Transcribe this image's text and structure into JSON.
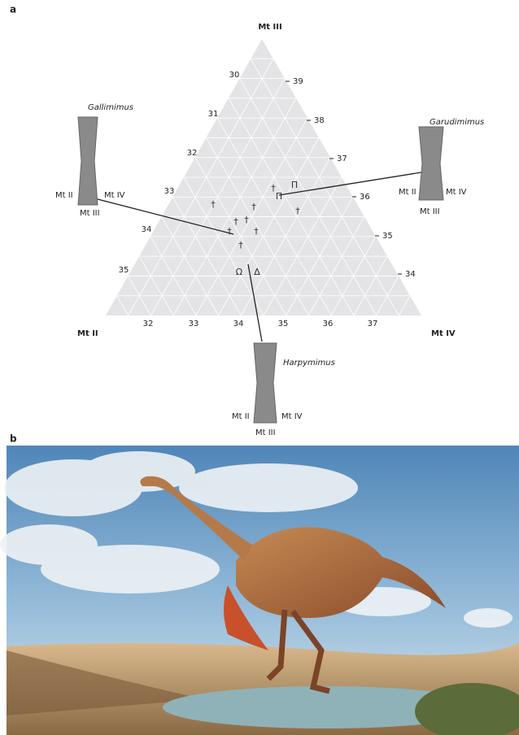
{
  "panel_a": {
    "label": "a",
    "corners": [
      "Mt III",
      "Mt II",
      "Mt IV"
    ],
    "left_ticks": [
      30,
      31,
      32,
      33,
      34,
      35
    ],
    "right_ticks": [
      39,
      38,
      37,
      36,
      35,
      34
    ],
    "bottom_ticks": [
      32,
      33,
      34,
      35,
      36,
      37
    ],
    "taxa": [
      {
        "name": "Gallimimus",
        "labels": [
          "Mt II",
          "Mt IV",
          "Mt III"
        ]
      },
      {
        "name": "Garudimimus",
        "labels": [
          "Mt II",
          "Mt IV",
          "Mt III"
        ]
      },
      {
        "name": "Harpymimus",
        "labels": [
          "Mt II",
          "Mt IV",
          "Mt III"
        ]
      }
    ],
    "symbols": [
      "†",
      "†",
      "†",
      "†",
      "†",
      "†",
      "†",
      "†",
      "†",
      "Π",
      "Π",
      "Ω",
      "Δ"
    ]
  },
  "panel_b": {
    "label": "b"
  }
}
